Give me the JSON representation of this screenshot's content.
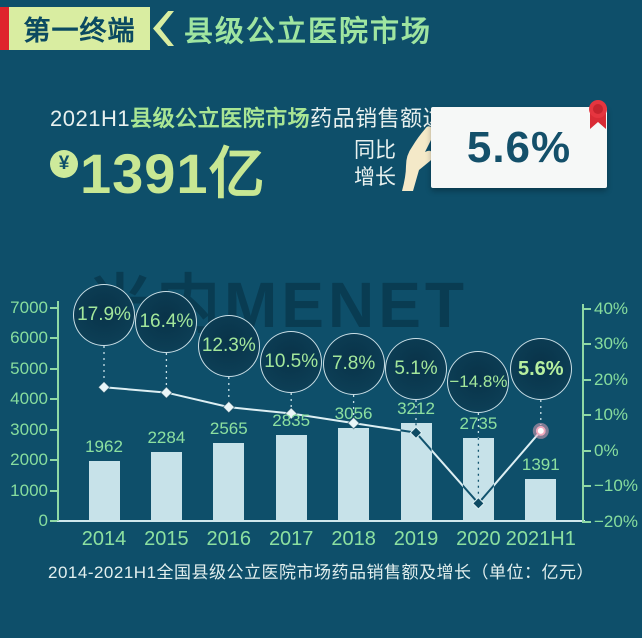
{
  "header": {
    "tag": "第一终端",
    "title": "县级公立医院市场"
  },
  "headline": {
    "prefix": "2021H1",
    "highlight": "县级公立医院市场",
    "suffix": "药品销售额达",
    "yen": "¥",
    "amount": "1391亿",
    "growth_l1": "同比",
    "growth_l2": "增长",
    "growth_value": "5.6%"
  },
  "watermark": "米内MENET",
  "chart_data": {
    "type": "bar+line",
    "categories": [
      "2014",
      "2015",
      "2016",
      "2017",
      "2018",
      "2019",
      "2020",
      "2021H1"
    ],
    "bar_values": [
      1962,
      2284,
      2565,
      2835,
      3056,
      3212,
      2735,
      1391
    ],
    "line_values_pct": [
      17.9,
      16.4,
      12.3,
      10.5,
      7.8,
      5.1,
      -14.8,
      5.6
    ],
    "bubble_labels": [
      "17.9%",
      "16.4%",
      "12.3%",
      "10.5%",
      "7.8%",
      "5.1%",
      "−14.8%",
      "5.6%"
    ],
    "left_axis_ticks": [
      "7000",
      "6000",
      "5000",
      "4000",
      "3000",
      "2000",
      "1000",
      "0"
    ],
    "right_axis_ticks": [
      "40%",
      "30%",
      "20%",
      "10%",
      "0%",
      "−10%",
      "−20%"
    ],
    "left_axis_range": [
      0,
      7000
    ],
    "right_axis_range_pct": [
      -20,
      40
    ],
    "grid": false,
    "legend": "none",
    "title": "2014-2021H1全国县级公立医院市场药品销售额及增长（单位：亿元）"
  },
  "caption": "2014-2021H1全国县级公立医院市场药品销售额及增长（单位：亿元）",
  "colors": {
    "background": "#0e4f6a",
    "banner_green": "#d9eda1",
    "accent_green": "#8ce0a0",
    "red": "#df242c",
    "bar_fill": "#c7e2e9",
    "card_text": "#14506a",
    "highlight_pink": "#f0a9bd"
  }
}
